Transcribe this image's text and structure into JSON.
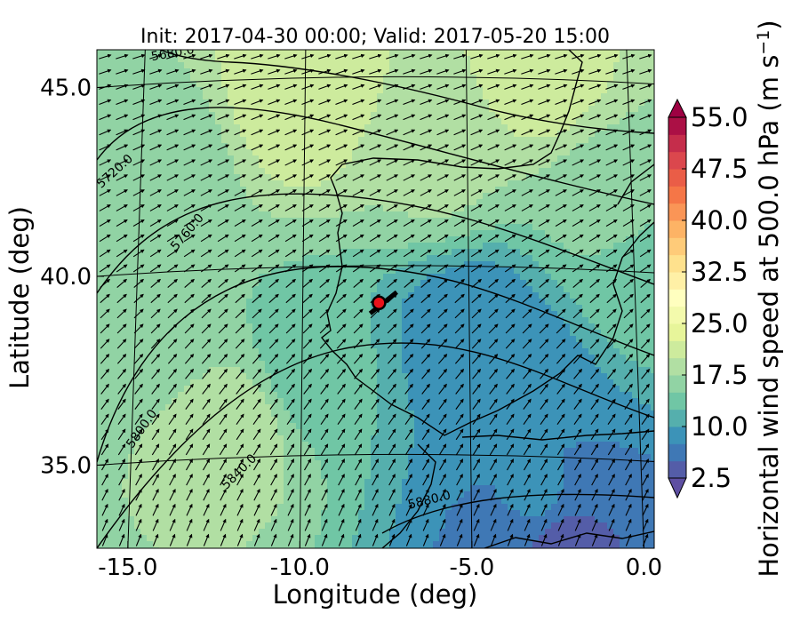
{
  "chart_data": {
    "type": "heatmap",
    "title": "Init: 2017-04-30 00:00; Valid: 2017-05-20 15:00",
    "xlabel": "Longitude (deg)",
    "ylabel": "Latitude (deg)",
    "xlim": [
      -15.9,
      0.3
    ],
    "ylim": [
      32.8,
      46.0
    ],
    "x_ticks": [
      {
        "value": -15.0,
        "label": "-15.0"
      },
      {
        "value": -10.0,
        "label": "-10.0"
      },
      {
        "value": -5.0,
        "label": "-5.0"
      },
      {
        "value": 0.0,
        "label": "0.0"
      }
    ],
    "y_ticks": [
      {
        "value": 45.0,
        "label": "45.0"
      },
      {
        "value": 40.0,
        "label": "40.0"
      },
      {
        "value": 35.0,
        "label": "35.0"
      }
    ],
    "colorbar": {
      "label": "Horizontal wind speed at 500.0 hPa (m s$^{-1}$)",
      "label_display": "Horizontal wind speed at 500.0 hPa (m s",
      "label_superscript": "−1",
      "label_suffix": ")",
      "min": 2.5,
      "max": 55.0,
      "step": 2.5,
      "extend": "both",
      "ticks": [
        {
          "value": 55.0,
          "label": "55.0"
        },
        {
          "value": 47.5,
          "label": "47.5"
        },
        {
          "value": 40.0,
          "label": "40.0"
        },
        {
          "value": 32.5,
          "label": "32.5"
        },
        {
          "value": 25.0,
          "label": "25.0"
        },
        {
          "value": 17.5,
          "label": "17.5"
        },
        {
          "value": 10.0,
          "label": "10.0"
        },
        {
          "value": 2.5,
          "label": "2.5"
        }
      ],
      "colormap": "Spectral_r"
    },
    "height_contours": [
      {
        "level": 5680,
        "label": "5680.0"
      },
      {
        "level": 5720,
        "label": "5720.0"
      },
      {
        "level": 5760,
        "label": "5760.0"
      },
      {
        "level": 5800,
        "label": "5800.0"
      },
      {
        "level": 5840,
        "label": "5840.0"
      },
      {
        "level": 5880,
        "label": "5880.0"
      }
    ],
    "wind_field": {
      "regions": [
        {
          "lon": -10,
          "lat": 44.8,
          "speed": 22
        },
        {
          "lon": -3,
          "lat": 45.2,
          "speed": 21
        },
        {
          "lon": -14,
          "lat": 43,
          "speed": 16
        },
        {
          "lon": -6,
          "lat": 43,
          "speed": 18
        },
        {
          "lon": -14,
          "lat": 39,
          "speed": 15
        },
        {
          "lon": -12,
          "lat": 36,
          "speed": 19
        },
        {
          "lon": -9.5,
          "lat": 37.5,
          "speed": 13
        },
        {
          "lon": -5,
          "lat": 38.5,
          "speed": 8
        },
        {
          "lon": -3.5,
          "lat": 37,
          "speed": 8
        },
        {
          "lon": -3,
          "lat": 34,
          "speed": 8
        },
        {
          "lon": -2.5,
          "lat": 33.1,
          "speed": 4
        },
        {
          "lon": 0,
          "lat": 40,
          "speed": 14
        },
        {
          "lon": -1,
          "lat": 42,
          "speed": 16
        }
      ],
      "direction": "southwesterly"
    },
    "marker": {
      "lon": -7.7,
      "lat": 39.3,
      "color": "#e8121b"
    },
    "map_features": [
      "coastlines",
      "graticule",
      "geopotential-height-contours",
      "wind-vectors"
    ]
  }
}
